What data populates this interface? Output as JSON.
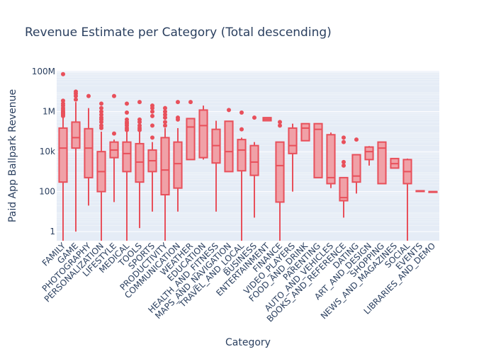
{
  "chart_data": {
    "type": "box",
    "title": "Revenue Estimate per Category (Total descending)",
    "xlabel": "Category",
    "ylabel": "Paid App Ballpark Revenue",
    "y_scale": "log",
    "ylim": [
      0.35,
      110000000
    ],
    "y_ticks": [
      {
        "value": 1,
        "label": "1"
      },
      {
        "value": 100,
        "label": "100"
      },
      {
        "value": 10000,
        "label": "10k"
      },
      {
        "value": 1000000,
        "label": "1M"
      },
      {
        "value": 100000000,
        "label": "100M"
      }
    ],
    "colors": {
      "box_line": "#e8505b",
      "box_fill": "#f0a1a7",
      "plot_bg": "#e5ecf6",
      "grid": "#ffffff",
      "text": "#2a3f5f"
    },
    "grid": true,
    "categories": [
      {
        "name": "FAMILY",
        "min": 0.3,
        "q1": 300,
        "median": 15000,
        "q3": 150000,
        "max": 3000000,
        "outliers": [
          3500000,
          2500000,
          2000000,
          1500000,
          1200000,
          1000000,
          900000,
          800000,
          700000,
          600000,
          75000000
        ]
      },
      {
        "name": "GAME",
        "min": 1,
        "q1": 15000,
        "median": 50000,
        "q3": 300000,
        "max": 3000000,
        "outliers": [
          10000000,
          8000000,
          6000000,
          4000000
        ]
      },
      {
        "name": "PHOTOGRAPHY",
        "min": 20,
        "q1": 500,
        "median": 15000,
        "q3": 140000,
        "max": 1500000,
        "outliers": [
          6000000
        ]
      },
      {
        "name": "PERSONALIZATION",
        "min": 0.3,
        "q1": 100,
        "median": 1000,
        "q3": 10000,
        "max": 100000,
        "outliers": [
          2500000,
          1500000,
          1000000,
          700000,
          500000,
          400000,
          300000,
          200000,
          150000
        ]
      },
      {
        "name": "LIFESTYLE",
        "min": 30,
        "q1": 5000,
        "median": 12000,
        "q3": 30000,
        "max": 40000,
        "outliers": [
          80000,
          6000000
        ]
      },
      {
        "name": "MEDICAL",
        "min": 0.3,
        "q1": 1000,
        "median": 8000,
        "q3": 30000,
        "max": 100000,
        "outliers": [
          2500000,
          900000,
          400000,
          300000,
          250000,
          200000,
          150000,
          120000
        ]
      },
      {
        "name": "TOOLS",
        "min": 1.5,
        "q1": 300,
        "median": 3000,
        "q3": 25000,
        "max": 100000,
        "outliers": [
          3000000,
          400000,
          300000,
          200000,
          150000,
          120000
        ]
      },
      {
        "name": "SPORTS",
        "min": 10,
        "q1": 1000,
        "median": 3500,
        "q3": 12000,
        "max": 30000,
        "outliers": [
          2000000,
          1500000,
          1000000,
          600000,
          200000,
          50000
        ]
      },
      {
        "name": "PRODUCTIVITY",
        "min": 0.3,
        "q1": 70,
        "median": 1200,
        "q3": 50000,
        "max": 150000,
        "outliers": [
          1500000,
          1000000,
          700000,
          500000,
          300000,
          200000
        ]
      },
      {
        "name": "COMMUNICATION",
        "min": 10,
        "q1": 150,
        "median": 2500,
        "q3": 30000,
        "max": 150000,
        "outliers": [
          3000000,
          500000,
          400000
        ]
      },
      {
        "name": "WEATHER",
        "min": 4000,
        "q1": 4000,
        "median": 170000,
        "q3": 450000,
        "max": 450000,
        "outliers": [
          3000000
        ]
      },
      {
        "name": "EDUCATION",
        "min": 4000,
        "q1": 5000,
        "median": 200000,
        "q3": 1200000,
        "max": 2000000,
        "outliers": []
      },
      {
        "name": "HEALTH_AND_FITNESS",
        "min": 10,
        "q1": 2700,
        "median": 20000,
        "q3": 130000,
        "max": 350000,
        "outliers": []
      },
      {
        "name": "MAPS_AND_NAVIGATION",
        "min": 1000,
        "q1": 1000,
        "median": 10000,
        "q3": 330000,
        "max": 330000,
        "outliers": [
          1200000
        ]
      },
      {
        "name": "TRAVEL_AND_LOCAL",
        "min": 0.3,
        "q1": 1100,
        "median": 12000,
        "q3": 40000,
        "max": 50000,
        "outliers": [
          130000,
          900000
        ]
      },
      {
        "name": "BUSINESS",
        "min": 5,
        "q1": 650,
        "median": 3000,
        "q3": 20000,
        "max": 30000,
        "outliers": [
          500000
        ]
      },
      {
        "name": "ENTERTAINMENT",
        "min": 350000,
        "q1": 350000,
        "median": 420000,
        "q3": 500000,
        "max": 500000,
        "outliers": []
      },
      {
        "name": "FINANCE",
        "min": 0.3,
        "q1": 30,
        "median": 2000,
        "q3": 30000,
        "max": 30000,
        "outliers": [
          200000,
          300000
        ]
      },
      {
        "name": "VIDEO_PLAYERS",
        "min": 100,
        "q1": 8000,
        "median": 20000,
        "q3": 150000,
        "max": 250000,
        "outliers": []
      },
      {
        "name": "FOOD_AND_DRINK",
        "min": 35000,
        "q1": 35000,
        "median": 150000,
        "q3": 250000,
        "max": 250000,
        "outliers": []
      },
      {
        "name": "PARENTING",
        "min": 500,
        "q1": 500,
        "median": 130000,
        "q3": 250000,
        "max": 250000,
        "outliers": []
      },
      {
        "name": "AUTO_AND_VEHICLES",
        "min": 150,
        "q1": 250,
        "median": 500,
        "q3": 70000,
        "max": 90000,
        "outliers": []
      },
      {
        "name": "BOOKS_AND_REFERENCE",
        "min": 5,
        "q1": 35,
        "median": 50,
        "q3": 500,
        "max": 500,
        "outliers": [
          3000,
          2000,
          30000,
          50000
        ]
      },
      {
        "name": "DATING",
        "min": 80,
        "q1": 300,
        "median": 600,
        "q3": 7000,
        "max": 7000,
        "outliers": [
          40000
        ]
      },
      {
        "name": "ART_AND_DESIGN",
        "min": 2000,
        "q1": 4000,
        "median": 10000,
        "q3": 17000,
        "max": 19000,
        "outliers": []
      },
      {
        "name": "SHOPPING",
        "min": 250,
        "q1": 250,
        "median": 15000,
        "q3": 30000,
        "max": 30000,
        "outliers": []
      },
      {
        "name": "NEWS_AND_MAGAZINES",
        "min": 1500,
        "q1": 1500,
        "median": 2500,
        "q3": 4500,
        "max": 4500,
        "outliers": []
      },
      {
        "name": "SOCIAL",
        "min": 0.3,
        "q1": 250,
        "median": 1000,
        "q3": 4000,
        "max": 4500,
        "outliers": []
      },
      {
        "name": "EVENTS",
        "min": 110,
        "q1": 110,
        "median": 110,
        "q3": 110,
        "max": 110,
        "outliers": []
      },
      {
        "name": "LIBRARIES_AND_DEMO",
        "min": 100,
        "q1": 100,
        "median": 100,
        "q3": 100,
        "max": 100,
        "outliers": []
      }
    ]
  }
}
